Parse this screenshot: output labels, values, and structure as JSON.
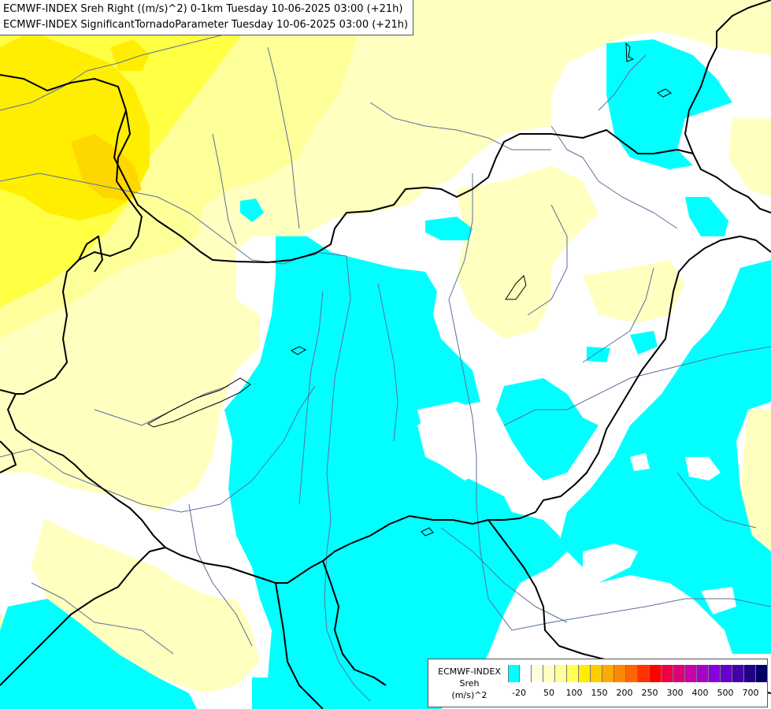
{
  "header": {
    "line1": "ECMWF-INDEX Sreh Right ((m/s)^2) 0-1km Tuesday 10-06-2025 03:00 (+21h)",
    "line2": "ECMWF-INDEX SignificantTornadoParameter Tuesday 10-06-2025 03:00 (+21h)"
  },
  "legend": {
    "title_line1": "ECMWF-INDEX",
    "title_line2": "Sreh",
    "title_line3": "(m/s)^2",
    "colors": [
      "#00ffff",
      "#ffffff",
      "#ffffe0",
      "#ffffc0",
      "#ffff99",
      "#ffff55",
      "#ffee00",
      "#ffcc00",
      "#ffaa00",
      "#ff8800",
      "#ff6600",
      "#ff3300",
      "#ff0000",
      "#ee0044",
      "#dd0077",
      "#cc00aa",
      "#aa00cc",
      "#8800dd",
      "#6600cc",
      "#4400aa",
      "#220088",
      "#000066"
    ],
    "ticks": [
      "-20",
      "50",
      "100",
      "150",
      "200",
      "250",
      "300",
      "400",
      "500",
      "700"
    ]
  },
  "palette": {
    "cyan": "#00ffff",
    "pale_yellow": "#ffffc0",
    "light_yellow": "#ffff99",
    "yellow": "#ffff33",
    "bright_yellow": "#ffee00",
    "orange_yellow": "#ffd700",
    "borders": "#000000",
    "rivers": "#5a6f9a"
  }
}
